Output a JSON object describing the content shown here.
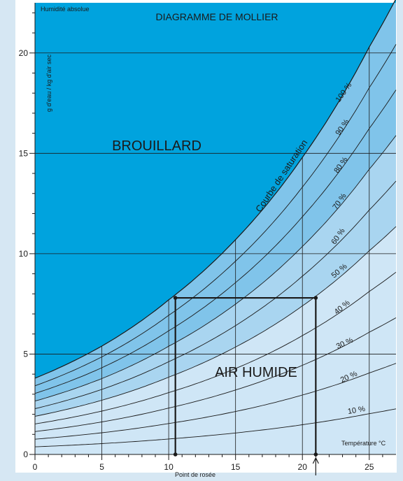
{
  "chart_data": {
    "type": "line",
    "title": "DIAGRAMME DE MOLLIER",
    "ylabel_top": "Humidité absolue",
    "ylabel_unit": "g d'eau / kg d'air sec",
    "xlabel": "Température °C",
    "xlabel_bottom": "Point de rosée",
    "xlim": [
      0,
      27
    ],
    "ylim": [
      0,
      22.5
    ],
    "x_ticks": [
      0,
      5,
      10,
      15,
      20,
      25
    ],
    "x_tick_labels": [
      "0",
      "5",
      "10",
      "15",
      "20",
      "25"
    ],
    "y_ticks": [
      0,
      5,
      10,
      15,
      20
    ],
    "y_tick_labels": [
      "0",
      "5",
      "10",
      "15",
      "20"
    ],
    "region_labels": {
      "fog": "BROUILLARD",
      "humid": "AIR HUMIDE",
      "saturation": "Courbe de saturation"
    },
    "saturation_curve": {
      "x": [
        0,
        5,
        10,
        15,
        20,
        25,
        27
      ],
      "y": [
        3.8,
        5.4,
        7.7,
        10.7,
        14.8,
        20.3,
        22.7
      ]
    },
    "rh_curves": [
      {
        "rh": 10,
        "label": "10 %"
      },
      {
        "rh": 20,
        "label": "20 %"
      },
      {
        "rh": 30,
        "label": "30 %"
      },
      {
        "rh": 40,
        "label": "40 %"
      },
      {
        "rh": 50,
        "label": "50 %"
      },
      {
        "rh": 60,
        "label": "60 %"
      },
      {
        "rh": 70,
        "label": "70 %"
      },
      {
        "rh": 80,
        "label": "80 %"
      },
      {
        "rh": 90,
        "label": "90 %"
      },
      {
        "rh": 100,
        "label": "100 %"
      }
    ],
    "example": {
      "air_temperature": 21,
      "dew_point": 10.5,
      "absolute_humidity": 7.8
    },
    "colors": {
      "fog": "#00a3de",
      "band_dark": "#80c4ea",
      "band_mid": "#a9d5f0",
      "band_light": "#cfe6f6",
      "page_side": "#d6e7f3",
      "line": "#1a1a1a"
    }
  }
}
